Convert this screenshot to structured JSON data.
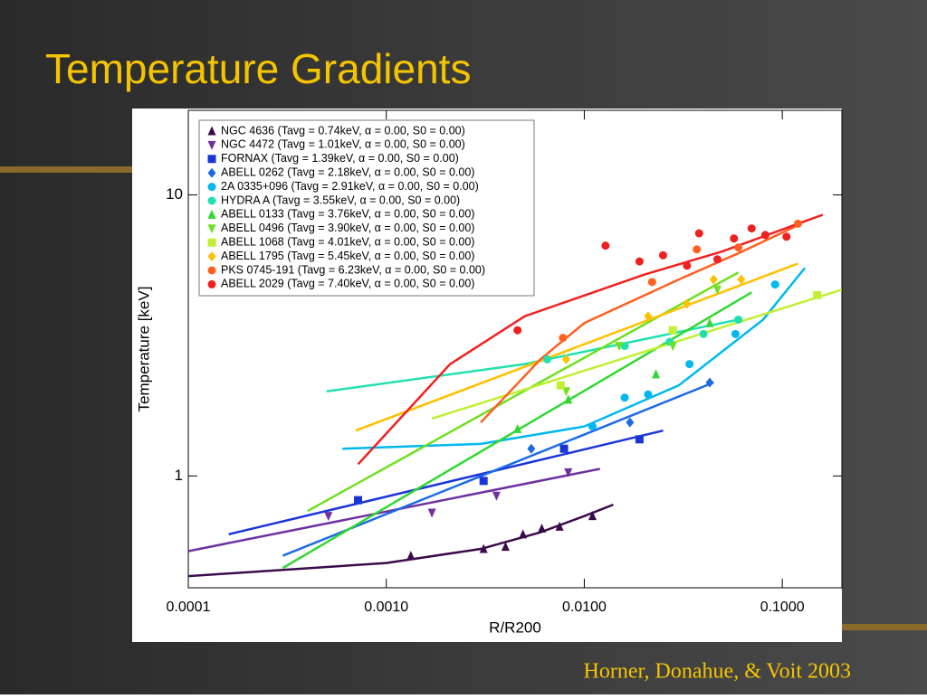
{
  "slide": {
    "title": "Temperature Gradients",
    "citation": "Horner, Donahue, & Voit 2003"
  },
  "chart_data": {
    "type": "scatter",
    "x_label": "R/R200",
    "y_label": "Temperature [keV]",
    "xscale": "log",
    "yscale": "log",
    "xlim": [
      0.0001,
      0.2
    ],
    "ylim": [
      0.4,
      20
    ],
    "xticks": [
      {
        "value": 0.0001,
        "label": "0.0001"
      },
      {
        "value": 0.001,
        "label": "0.0010"
      },
      {
        "value": 0.01,
        "label": "0.0100"
      },
      {
        "value": 0.1,
        "label": "0.1000"
      }
    ],
    "yticks": [
      1,
      10
    ],
    "legend": "upper left",
    "series": [
      {
        "name": "NGC 4636 (Tavg = 0.74keV, α = 0.00, S0 = 0.00)",
        "color": "#3a0a4a",
        "marker": "triangle",
        "x": [
          0.00133,
          0.0031,
          0.004,
          0.0049,
          0.0061,
          0.0075,
          0.011
        ],
        "values": [
          0.52,
          0.55,
          0.56,
          0.62,
          0.65,
          0.66,
          0.72
        ],
        "fit_x": [
          0.0001,
          0.001,
          0.003,
          0.006,
          0.01,
          0.014
        ],
        "fit_values": [
          0.44,
          0.49,
          0.55,
          0.63,
          0.72,
          0.79
        ]
      },
      {
        "name": "NGC 4472 (Tavg = 1.01keV, α = 0.00, S0 = 0.00)",
        "color": "#7030a0",
        "marker": "triangle-down",
        "x": [
          0.00051,
          0.0017,
          0.0036,
          0.0083
        ],
        "values": [
          0.72,
          0.74,
          0.85,
          1.03
        ],
        "fit_x": [
          0.0001,
          0.012
        ],
        "fit_values": [
          0.54,
          1.06
        ]
      },
      {
        "name": "FORNAX (Tavg = 1.39keV, α = 0.00, S0 = 0.00)",
        "color": "#1a35d6",
        "marker": "square",
        "x": [
          0.00072,
          0.0031,
          0.0079,
          0.019
        ],
        "values": [
          0.82,
          0.96,
          1.25,
          1.35
        ],
        "fit_x": [
          0.00016,
          0.025
        ],
        "fit_values": [
          0.62,
          1.45
        ]
      },
      {
        "name": "ABELL 0262 (Tavg = 2.18keV, α = 0.00, S0 = 0.00)",
        "color": "#1c6ae6",
        "marker": "diamond",
        "x": [
          0.0054,
          0.017,
          0.043
        ],
        "values": [
          1.25,
          1.55,
          2.15
        ],
        "fit_x": [
          0.0003,
          0.045
        ],
        "fit_values": [
          0.52,
          2.15
        ]
      },
      {
        "name": "2A 0335+096 (Tavg = 2.91keV, α = 0.00, S0 = 0.00)",
        "color": "#00b8f0",
        "marker": "circle",
        "x": [
          0.011,
          0.016,
          0.021,
          0.034,
          0.058,
          0.092
        ],
        "values": [
          1.5,
          1.9,
          1.95,
          2.5,
          3.2,
          4.8
        ],
        "fit_x": [
          0.0006,
          0.003,
          0.01,
          0.03,
          0.08,
          0.13
        ],
        "fit_values": [
          1.25,
          1.3,
          1.5,
          2.1,
          3.6,
          5.5
        ]
      },
      {
        "name": "HYDRA A (Tavg = 3.55keV, α = 0.00, S0 = 0.00)",
        "color": "#20e0b0",
        "marker": "circle",
        "x": [
          0.0065,
          0.016,
          0.027,
          0.04,
          0.06
        ],
        "values": [
          2.6,
          2.9,
          3.0,
          3.2,
          3.6
        ],
        "fit_x": [
          0.0005,
          0.005,
          0.06
        ],
        "fit_values": [
          2.0,
          2.5,
          3.6
        ]
      },
      {
        "name": "ABELL 0133 (Tavg = 3.76keV, α = 0.00, S0 = 0.00)",
        "color": "#30d830",
        "marker": "triangle",
        "x": [
          0.0046,
          0.0083,
          0.023,
          0.043
        ],
        "values": [
          1.47,
          1.87,
          2.3,
          3.5
        ],
        "fit_x": [
          0.0003,
          0.07
        ],
        "fit_values": [
          0.47,
          4.5
        ]
      },
      {
        "name": "ABELL 0496 (Tavg = 3.90keV, α = 0.00, S0 = 0.00)",
        "color": "#70e020",
        "marker": "triangle-down",
        "x": [
          0.0081,
          0.015,
          0.028,
          0.047
        ],
        "values": [
          2.0,
          2.9,
          2.9,
          4.6
        ],
        "fit_x": [
          0.0004,
          0.06
        ],
        "fit_values": [
          0.75,
          5.3
        ]
      },
      {
        "name": "ABELL 1068 (Tavg = 4.01keV, α = 0.00, S0 = 0.00)",
        "color": "#c0f030",
        "marker": "square",
        "x": [
          0.0076,
          0.028,
          0.15
        ],
        "values": [
          2.1,
          3.3,
          4.4
        ],
        "fit_x": [
          0.0017,
          0.2
        ],
        "fit_values": [
          1.6,
          4.6
        ]
      },
      {
        "name": "ABELL 1795 (Tavg = 5.45keV, α = 0.00, S0 = 0.00)",
        "color": "#ffc000",
        "marker": "diamond",
        "x": [
          0.0081,
          0.021,
          0.033,
          0.045,
          0.062
        ],
        "values": [
          2.6,
          3.7,
          4.1,
          5.0,
          5.0
        ],
        "fit_x": [
          0.0007,
          0.12
        ],
        "fit_values": [
          1.45,
          5.7
        ]
      },
      {
        "name": "PKS 0745-191 (Tavg = 6.23keV, α = 0.00, S0 = 0.00)",
        "color": "#ff6020",
        "marker": "circle",
        "x": [
          0.0078,
          0.022,
          0.037,
          0.06,
          0.12
        ],
        "values": [
          3.1,
          4.9,
          6.4,
          6.5,
          7.9
        ],
        "fit_x": [
          0.003,
          0.006,
          0.01,
          0.03,
          0.06,
          0.12
        ],
        "fit_values": [
          1.55,
          2.6,
          3.5,
          5.0,
          6.2,
          7.8
        ]
      },
      {
        "name": "ABELL 2029 (Tavg = 7.40keV, α = 0.00, S0 = 0.00)",
        "color": "#f02020",
        "marker": "circle",
        "x": [
          0.0046,
          0.0128,
          0.019,
          0.025,
          0.033,
          0.038,
          0.047,
          0.057,
          0.07,
          0.082,
          0.105
        ],
        "values": [
          3.3,
          6.6,
          5.8,
          6.1,
          5.6,
          7.3,
          5.9,
          7.0,
          7.6,
          7.2,
          7.1
        ],
        "fit_x": [
          0.00072,
          0.0021,
          0.005,
          0.02,
          0.05,
          0.16
        ],
        "fit_values": [
          1.1,
          2.5,
          3.7,
          5.2,
          6.3,
          8.5
        ]
      }
    ]
  }
}
